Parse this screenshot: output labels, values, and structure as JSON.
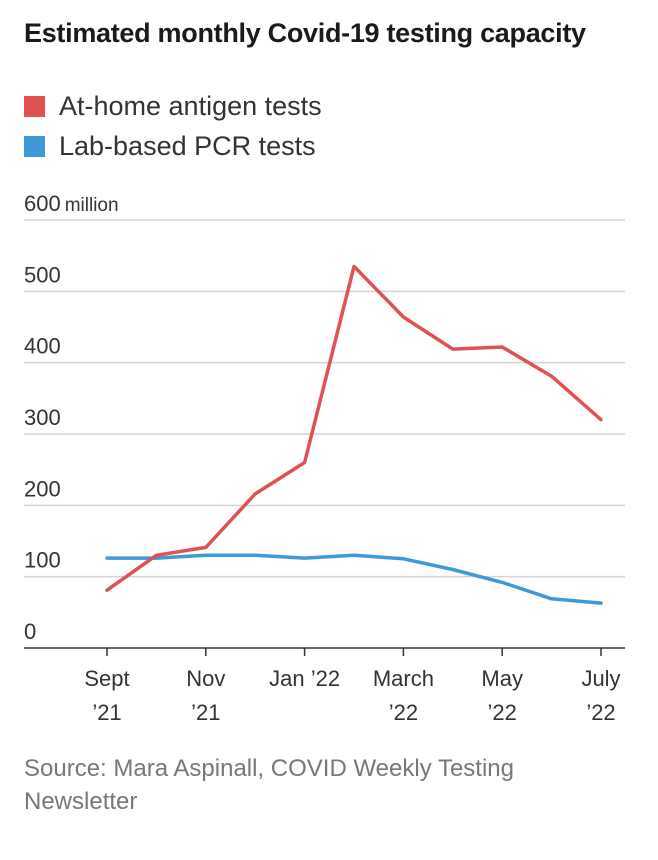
{
  "title": "Estimated monthly Covid-19 testing capacity",
  "source": "Source: Mara Aspinall, COVID Weekly Testing Newsletter",
  "colors": {
    "antigen": "#e05252",
    "pcr": "#3d9ad9",
    "grid": "#d4d4d4",
    "axis": "#333333"
  },
  "chart_data": {
    "type": "line",
    "title": "Estimated monthly Covid-19 testing capacity",
    "xlabel": "",
    "ylabel": "",
    "x": [
      "2021-09",
      "2021-10",
      "2021-11",
      "2021-12",
      "2022-01",
      "2022-02",
      "2022-03",
      "2022-04",
      "2022-05",
      "2022-06",
      "2022-07"
    ],
    "x_tick_labels": [
      {
        "x": "2021-09",
        "line1": "Sept",
        "line2": "’21"
      },
      {
        "x": "2021-11",
        "line1": "Nov",
        "line2": "’21"
      },
      {
        "x": "2022-01",
        "line1": "Jan ’22",
        "line2": ""
      },
      {
        "x": "2022-03",
        "line1": "March",
        "line2": "’22"
      },
      {
        "x": "2022-05",
        "line1": "May",
        "line2": "’22"
      },
      {
        "x": "2022-07",
        "line1": "July",
        "line2": "’22"
      }
    ],
    "y_ticks": [
      {
        "value": 0,
        "label": "0"
      },
      {
        "value": 100,
        "label": "100"
      },
      {
        "value": 200,
        "label": "200"
      },
      {
        "value": 300,
        "label": "300"
      },
      {
        "value": 400,
        "label": "400"
      },
      {
        "value": 500,
        "label": "500"
      },
      {
        "value": 600,
        "label": "600 million"
      }
    ],
    "ylim": [
      0,
      600
    ],
    "grid": true,
    "legend_position": "top-left",
    "series": [
      {
        "name": "At-home antigen tests",
        "color": "#e05252",
        "values": [
          81,
          130,
          141,
          216,
          260,
          535,
          464,
          419,
          422,
          381,
          320
        ]
      },
      {
        "name": "Lab-based PCR tests",
        "color": "#3d9ad9",
        "values": [
          126,
          126,
          130,
          130,
          126,
          130,
          125,
          110,
          92,
          69,
          63
        ]
      }
    ]
  }
}
